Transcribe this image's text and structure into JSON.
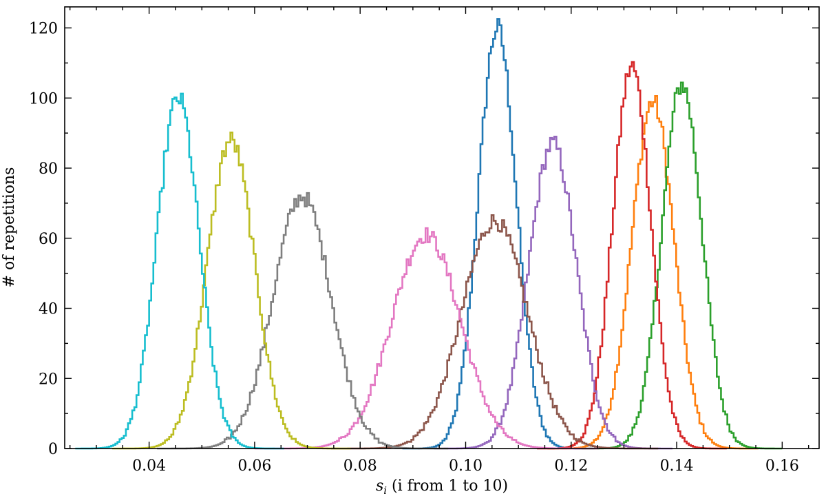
{
  "chart_data": {
    "type": "histogram-step",
    "title": "",
    "xlabel": "s",
    "xlabel_sub": "i",
    "xlabel_rest": " (i from 1 to 10)",
    "ylabel": "# of repetitions",
    "xlim": [
      0.024,
      0.167
    ],
    "ylim": [
      0,
      126
    ],
    "x_ticks": [
      0.04,
      0.06,
      0.08,
      0.1,
      0.12,
      0.14,
      0.16
    ],
    "x_tick_labels": [
      "0.04",
      "0.06",
      "0.08",
      "0.10",
      "0.12",
      "0.14",
      "0.16"
    ],
    "y_ticks": [
      0,
      20,
      40,
      60,
      80,
      100,
      120
    ],
    "y_tick_labels": [
      "0",
      "20",
      "40",
      "60",
      "80",
      "100",
      "120"
    ],
    "grid": false,
    "legend": "none",
    "series": [
      {
        "color": "#1f77b4",
        "mean": 0.106,
        "sigma": 0.0036,
        "peak": 120
      },
      {
        "color": "#ff7f0e",
        "mean": 0.1355,
        "sigma": 0.004,
        "peak": 99
      },
      {
        "color": "#2ca02c",
        "mean": 0.141,
        "sigma": 0.0038,
        "peak": 104
      },
      {
        "color": "#d62728",
        "mean": 0.1315,
        "sigma": 0.0036,
        "peak": 109
      },
      {
        "color": "#9467bd",
        "mean": 0.1165,
        "sigma": 0.0045,
        "peak": 87
      },
      {
        "color": "#8c564b",
        "mean": 0.1055,
        "sigma": 0.0062,
        "peak": 65
      },
      {
        "color": "#e377c2",
        "mean": 0.0925,
        "sigma": 0.0065,
        "peak": 61
      },
      {
        "color": "#7f7f7f",
        "mean": 0.069,
        "sigma": 0.0055,
        "peak": 72
      },
      {
        "color": "#bcbd22",
        "mean": 0.0555,
        "sigma": 0.0045,
        "peak": 88
      },
      {
        "color": "#17becf",
        "mean": 0.0455,
        "sigma": 0.004,
        "peak": 100
      }
    ]
  }
}
